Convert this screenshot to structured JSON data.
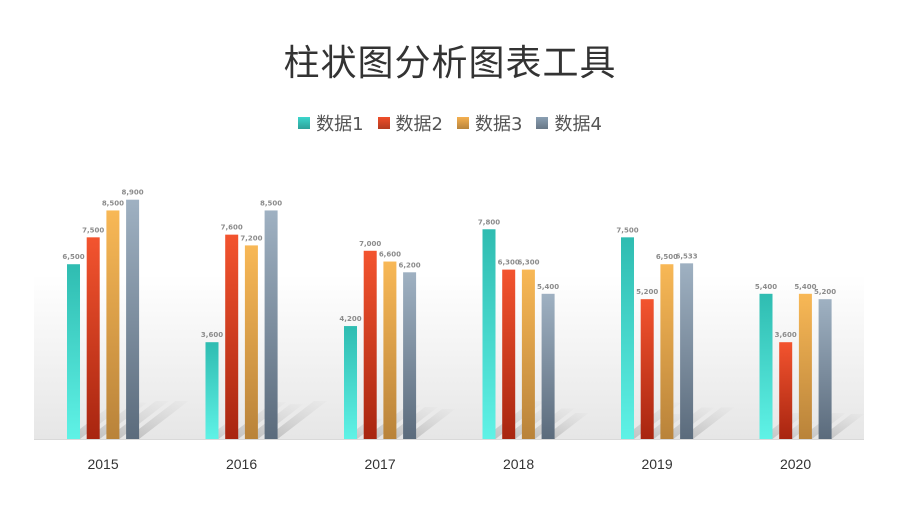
{
  "chart_data": {
    "type": "bar",
    "title": "柱状图分析图表工具",
    "categories": [
      "2015",
      "2016",
      "2017",
      "2018",
      "2019",
      "2020"
    ],
    "series": [
      {
        "name": "数据1",
        "color": "#3cd6cc",
        "values": [
          6500,
          3600,
          4200,
          7800,
          7500,
          5400
        ],
        "labels": [
          "6,500",
          "3,600",
          "4,200",
          "7,800",
          "7,500",
          "5,400"
        ]
      },
      {
        "name": "数据2",
        "color": "#f04e2a",
        "values": [
          7500,
          7600,
          7000,
          6300,
          5200,
          3600
        ],
        "labels": [
          "7,500",
          "7,600",
          "7,000",
          "6,300",
          "5,200",
          "3,600"
        ]
      },
      {
        "name": "数据3",
        "color": "#f5b050",
        "values": [
          8500,
          7200,
          6600,
          6300,
          6500,
          5400
        ],
        "labels": [
          "8,500",
          "7,200",
          "6,600",
          "6,300",
          "6,500",
          "5,400"
        ]
      },
      {
        "name": "数据4",
        "color": "#8a9fb3",
        "values": [
          8900,
          8500,
          6200,
          5400,
          6533,
          5200
        ],
        "labels": [
          "8,900",
          "8,500",
          "6,200",
          "5,400",
          "6,533",
          "5,200"
        ]
      }
    ],
    "ylim": [
      0,
      9000
    ],
    "grid": false,
    "legend_position": "top-center"
  }
}
